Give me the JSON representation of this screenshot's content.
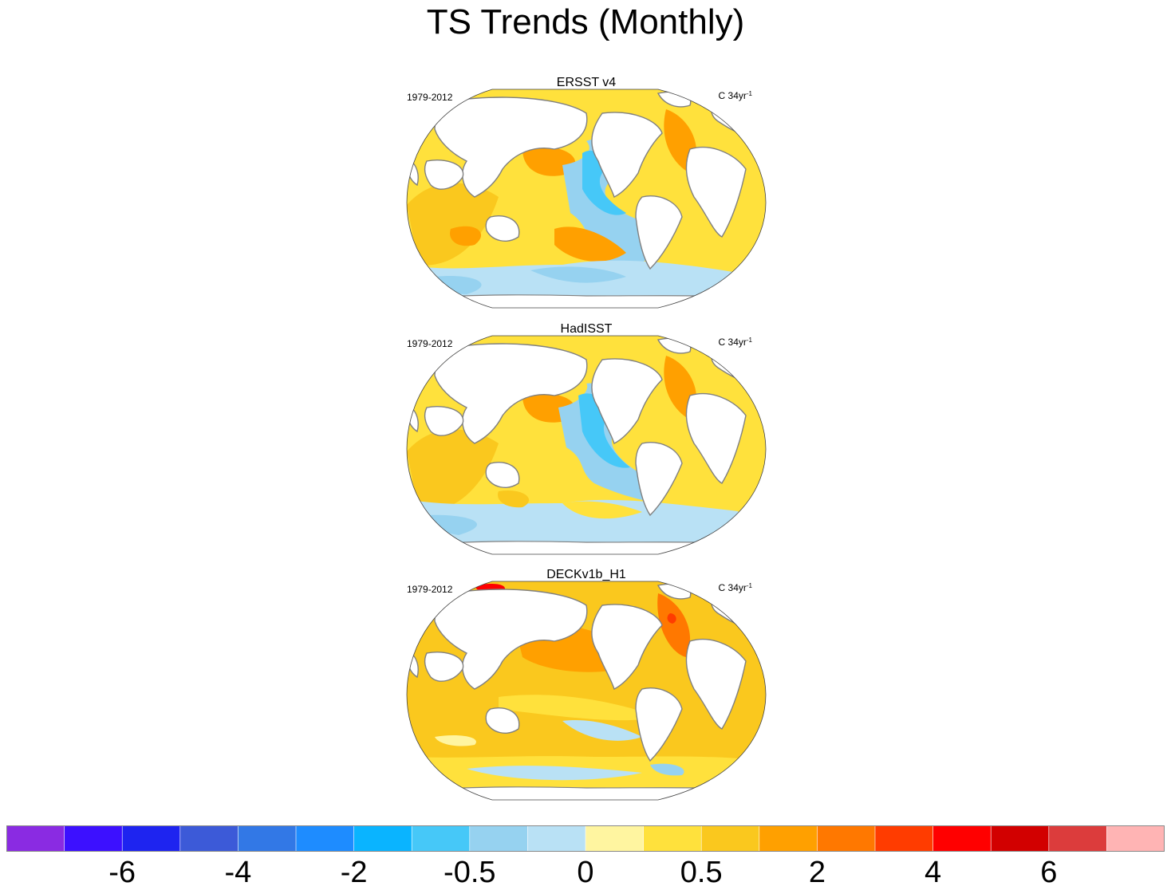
{
  "title": "TS Trends (Monthly)",
  "panels": [
    {
      "name": "ERSST v4",
      "period": "1979-2012",
      "units_base": "C 34yr",
      "units_exp": "-1",
      "pattern": "ersst"
    },
    {
      "name": "HadISST",
      "period": "1979-2012",
      "units_base": "C 34yr",
      "units_exp": "-1",
      "pattern": "hadisst"
    },
    {
      "name": "DECKv1b_H1",
      "period": "1979-2012",
      "units_base": "C 34yr",
      "units_exp": "-1",
      "pattern": "deck"
    }
  ],
  "chart_data": {
    "type": "heatmap",
    "title": "TS Trends (Monthly)",
    "projection": "Robinson",
    "period": "1979-2012",
    "units": "C 34yr-1",
    "panel_titles": [
      "ERSST v4",
      "HadISST",
      "DECKv1b_H1"
    ],
    "colorbar": {
      "colors": [
        "#8a2be2",
        "#3c10ff",
        "#1e24f0",
        "#3c5ad8",
        "#3278e6",
        "#1e8cff",
        "#0ab4ff",
        "#46c8f8",
        "#96d2f0",
        "#b9e1f5",
        "#fff5a0",
        "#ffe13c",
        "#fac81e",
        "#ffa000",
        "#ff7800",
        "#ff3c00",
        "#ff0000",
        "#d20000",
        "#dc3c3c",
        "#ffb4b4"
      ],
      "tick_labels": [
        "-6",
        "-4",
        "-2",
        "-0.5",
        "0",
        "0.5",
        "2",
        "4",
        "6"
      ],
      "tick_boundary_index": [
        2,
        4,
        6,
        8,
        10,
        12,
        14,
        16,
        18
      ]
    }
  }
}
